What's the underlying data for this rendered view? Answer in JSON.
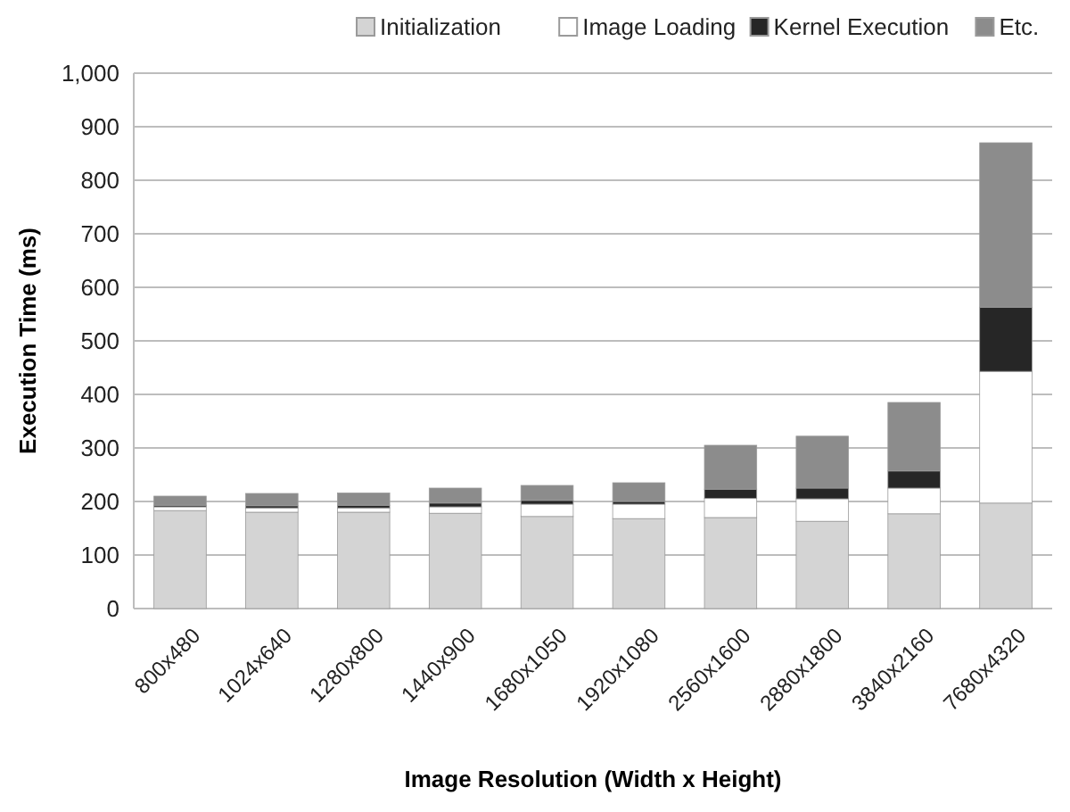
{
  "chart_data": {
    "type": "bar",
    "stacked": true,
    "xlabel": "Image Resolution (Width x Height)",
    "ylabel": "Execution Time (ms)",
    "categories": [
      "800x480",
      "1024x640",
      "1280x800",
      "1440x900",
      "1680x1050",
      "1920x1080",
      "2560x1600",
      "2880x1800",
      "3840x2160",
      "7680x4320"
    ],
    "series": [
      {
        "name": "Initialization",
        "color": "#d4d4d4",
        "values": [
          183,
          180,
          180,
          178,
          172,
          168,
          170,
          163,
          177,
          197
        ]
      },
      {
        "name": "Image Loading",
        "color": "#ffffff",
        "values": [
          7,
          8,
          8,
          12,
          23,
          27,
          36,
          42,
          48,
          246
        ]
      },
      {
        "name": "Kernel Execution",
        "color": "#262626",
        "values": [
          3,
          4,
          5,
          7,
          7,
          5,
          17,
          20,
          32,
          120
        ]
      },
      {
        "name": "Etc.",
        "color": "#8c8c8c",
        "values": [
          17,
          23,
          23,
          28,
          28,
          35,
          82,
          97,
          128,
          307
        ]
      }
    ],
    "ylim": [
      0,
      1000
    ],
    "yticks": [
      0,
      100,
      200,
      300,
      400,
      500,
      600,
      700,
      {
        "value": 800,
        "label": "800"
      },
      {
        "value": 900,
        "label": "900"
      },
      {
        "value": 1000,
        "label": "1,000"
      }
    ],
    "grid": "y",
    "legend": "top"
  }
}
